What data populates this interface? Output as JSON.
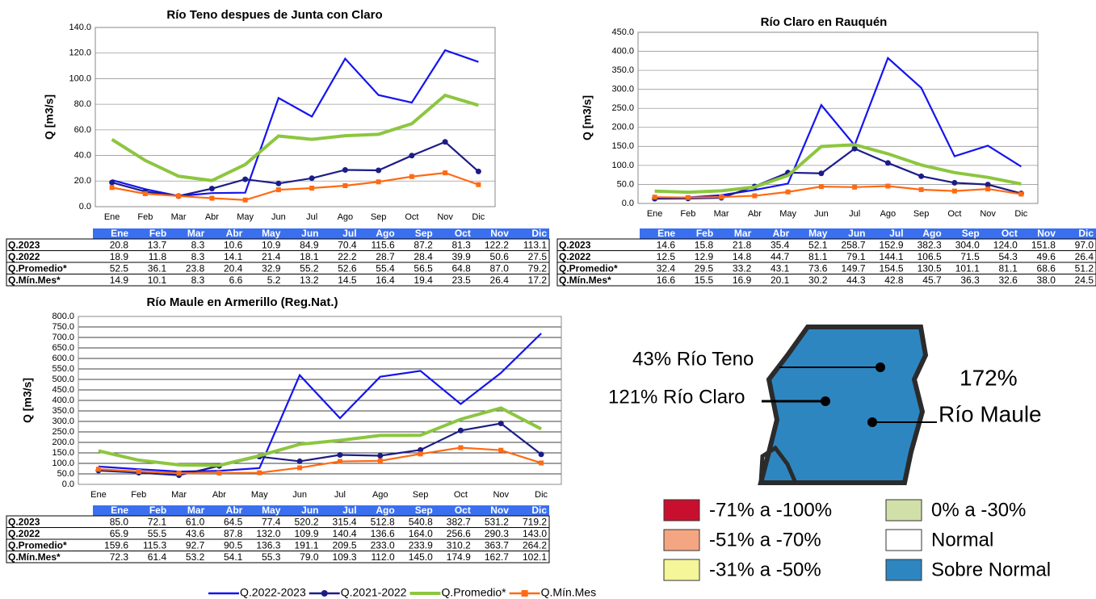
{
  "chart_data": [
    {
      "type": "line",
      "title": "Río Teno despues de Junta con Claro",
      "ylabel": "Q [m3/s]",
      "categories": [
        "Ene",
        "Feb",
        "Mar",
        "Abr",
        "May",
        "Jun",
        "Jul",
        "Ago",
        "Sep",
        "Oct",
        "Nov",
        "Dic"
      ],
      "ylim": [
        0,
        140
      ],
      "yticks": [
        {
          "value": 0,
          "label": "0.0"
        },
        {
          "value": 20,
          "label": "20.0"
        },
        {
          "value": 40,
          "label": "40.0"
        },
        {
          "value": 60,
          "label": "60.0"
        },
        {
          "value": 80,
          "label": "80.0"
        },
        {
          "value": 100,
          "label": "100.0"
        },
        {
          "value": 120,
          "label": "120.0"
        },
        {
          "value": 140,
          "label": "140.0"
        }
      ],
      "grid": true,
      "series": [
        {
          "name": "Q.2023",
          "color": "#1414f0",
          "values": [
            20.8,
            13.7,
            8.3,
            10.6,
            10.9,
            84.9,
            70.4,
            115.6,
            87.2,
            81.3,
            122.2,
            113.1
          ],
          "value_labels": [
            "20.8",
            "13.7",
            "8.3",
            "10.6",
            "10.9",
            "84.9",
            "70.4",
            "115.6",
            "87.2",
            "81.3",
            "122.2",
            "113.1"
          ]
        },
        {
          "name": "Q.2022",
          "color": "#1c1c88",
          "values": [
            18.9,
            11.8,
            8.3,
            14.1,
            21.4,
            18.1,
            22.2,
            28.7,
            28.4,
            39.9,
            50.6,
            27.5
          ],
          "value_labels": [
            "18.9",
            "11.8",
            "8.3",
            "14.1",
            "21.4",
            "18.1",
            "22.2",
            "28.7",
            "28.4",
            "39.9",
            "50.6",
            "27.5"
          ]
        },
        {
          "name": "Q.Promedio*",
          "color": "#8cc63f",
          "values": [
            52.5,
            36.1,
            23.8,
            20.4,
            32.9,
            55.2,
            52.6,
            55.4,
            56.5,
            64.8,
            87.0,
            79.2
          ],
          "value_labels": [
            "52.5",
            "36.1",
            "23.8",
            "20.4",
            "32.9",
            "55.2",
            "52.6",
            "55.4",
            "56.5",
            "64.8",
            "87.0",
            "79.2"
          ]
        },
        {
          "name": "Q.Mín.Mes*",
          "color": "#ff6a13",
          "values": [
            14.9,
            10.1,
            8.3,
            6.6,
            5.2,
            13.2,
            14.5,
            16.4,
            19.4,
            23.5,
            26.4,
            17.2
          ],
          "value_labels": [
            "14.9",
            "10.1",
            "8.3",
            "6.6",
            "5.2",
            "13.2",
            "14.5",
            "16.4",
            "19.4",
            "23.5",
            "26.4",
            "17.2"
          ]
        }
      ]
    },
    {
      "type": "line",
      "title": "Río Claro en Rauquén",
      "ylabel": "Q [m3/s]",
      "categories": [
        "Ene",
        "Feb",
        "Mar",
        "Abr",
        "May",
        "Jun",
        "Jul",
        "Ago",
        "Sep",
        "Oct",
        "Nov",
        "Dic"
      ],
      "ylim": [
        0,
        450
      ],
      "yticks": [
        {
          "value": 0,
          "label": "0.0"
        },
        {
          "value": 50,
          "label": "50.0"
        },
        {
          "value": 100,
          "label": "100.0"
        },
        {
          "value": 150,
          "label": "150.0"
        },
        {
          "value": 200,
          "label": "200.0"
        },
        {
          "value": 250,
          "label": "250.0"
        },
        {
          "value": 300,
          "label": "300.0"
        },
        {
          "value": 350,
          "label": "350.0"
        },
        {
          "value": 400,
          "label": "400.0"
        },
        {
          "value": 450,
          "label": "450.0"
        }
      ],
      "grid": true,
      "series": [
        {
          "name": "Q.2023",
          "color": "#1414f0",
          "values": [
            14.6,
            15.8,
            21.8,
            35.4,
            52.1,
            258.7,
            152.9,
            382.3,
            304.0,
            124.0,
            151.8,
            97.0
          ],
          "value_labels": [
            "14.6",
            "15.8",
            "21.8",
            "35.4",
            "52.1",
            "258.7",
            "152.9",
            "382.3",
            "304.0",
            "124.0",
            "151.8",
            "97.0"
          ]
        },
        {
          "name": "Q.2022",
          "color": "#1c1c88",
          "values": [
            12.5,
            12.9,
            14.8,
            44.7,
            81.1,
            79.1,
            144.1,
            106.5,
            71.5,
            54.3,
            49.6,
            26.4
          ],
          "value_labels": [
            "12.5",
            "12.9",
            "14.8",
            "44.7",
            "81.1",
            "79.1",
            "144.1",
            "106.5",
            "71.5",
            "54.3",
            "49.6",
            "26.4"
          ]
        },
        {
          "name": "Q.Promedio*",
          "color": "#8cc63f",
          "values": [
            32.4,
            29.5,
            33.2,
            43.1,
            73.6,
            149.7,
            154.5,
            130.5,
            101.1,
            81.1,
            68.6,
            51.2
          ],
          "value_labels": [
            "32.4",
            "29.5",
            "33.2",
            "43.1",
            "73.6",
            "149.7",
            "154.5",
            "130.5",
            "101.1",
            "81.1",
            "68.6",
            "51.2"
          ]
        },
        {
          "name": "Q.Mín.Mes*",
          "color": "#ff6a13",
          "values": [
            16.6,
            15.5,
            16.9,
            20.1,
            30.2,
            44.3,
            42.8,
            45.7,
            36.3,
            32.6,
            38.0,
            24.5
          ],
          "value_labels": [
            "16.6",
            "15.5",
            "16.9",
            "20.1",
            "30.2",
            "44.3",
            "42.8",
            "45.7",
            "36.3",
            "32.6",
            "38.0",
            "24.5"
          ]
        }
      ]
    },
    {
      "type": "line",
      "title": "Río Maule en Armerillo (Reg.Nat.)",
      "ylabel": "Q [m3/s]",
      "categories": [
        "Ene",
        "Feb",
        "Mar",
        "Abr",
        "May",
        "Jun",
        "Jul",
        "Ago",
        "Sep",
        "Oct",
        "Nov",
        "Dic"
      ],
      "ylim": [
        0,
        800
      ],
      "yticks": [
        {
          "value": 0,
          "label": "0.0"
        },
        {
          "value": 50,
          "label": "50.0"
        },
        {
          "value": 100,
          "label": "100.0"
        },
        {
          "value": 150,
          "label": "150.0"
        },
        {
          "value": 200,
          "label": "200.0"
        },
        {
          "value": 250,
          "label": "250.0"
        },
        {
          "value": 300,
          "label": "300.0"
        },
        {
          "value": 350,
          "label": "350.0"
        },
        {
          "value": 400,
          "label": "400.0"
        },
        {
          "value": 450,
          "label": "450.0"
        },
        {
          "value": 500,
          "label": "500.0"
        },
        {
          "value": 550,
          "label": "550.0"
        },
        {
          "value": 600,
          "label": "600.0"
        },
        {
          "value": 650,
          "label": "650.0"
        },
        {
          "value": 700,
          "label": "700.0"
        },
        {
          "value": 750,
          "label": "750.0"
        },
        {
          "value": 800,
          "label": "800.0"
        }
      ],
      "grid": true,
      "series": [
        {
          "name": "Q.2023",
          "color": "#1414f0",
          "values": [
            85.0,
            72.1,
            61.0,
            64.5,
            77.4,
            520.2,
            315.4,
            512.8,
            540.8,
            382.7,
            531.2,
            719.2
          ],
          "value_labels": [
            "85.0",
            "72.1",
            "61.0",
            "64.5",
            "77.4",
            "520.2",
            "315.4",
            "512.8",
            "540.8",
            "382.7",
            "531.2",
            "719.2"
          ]
        },
        {
          "name": "Q.2022",
          "color": "#1c1c88",
          "values": [
            65.9,
            55.5,
            43.6,
            87.8,
            132.0,
            109.9,
            140.4,
            136.6,
            164.0,
            256.6,
            290.3,
            143.0
          ],
          "value_labels": [
            "65.9",
            "55.5",
            "43.6",
            "87.8",
            "132.0",
            "109.9",
            "140.4",
            "136.6",
            "164.0",
            "256.6",
            "290.3",
            "143.0"
          ]
        },
        {
          "name": "Q.Promedio*",
          "color": "#8cc63f",
          "values": [
            159.6,
            115.3,
            92.7,
            90.5,
            136.3,
            191.1,
            209.5,
            233.0,
            233.9,
            310.2,
            363.7,
            264.2
          ],
          "value_labels": [
            "159.6",
            "115.3",
            "92.7",
            "90.5",
            "136.3",
            "191.1",
            "209.5",
            "233.0",
            "233.9",
            "310.2",
            "363.7",
            "264.2"
          ]
        },
        {
          "name": "Q.Mín.Mes*",
          "color": "#ff6a13",
          "values": [
            72.3,
            61.4,
            53.2,
            54.1,
            55.3,
            79.0,
            109.3,
            112.0,
            145.0,
            174.9,
            162.7,
            102.1
          ],
          "value_labels": [
            "72.3",
            "61.4",
            "53.2",
            "54.1",
            "55.3",
            "79.0",
            "109.3",
            "112.0",
            "145.0",
            "174.9",
            "162.7",
            "102.1"
          ]
        }
      ]
    }
  ],
  "legend": [
    {
      "name": "Q.2022-2023",
      "color": "#1414f0"
    },
    {
      "name": "Q.2021-2022",
      "color": "#1c1c88"
    },
    {
      "name": "Q.Promedio*",
      "color": "#8cc63f"
    },
    {
      "name": "Q.Mín.Mes",
      "color": "#ff6a13"
    }
  ],
  "map": {
    "labels": [
      "43% Río Teno",
      "121% Río Claro",
      "172%",
      "Río Maule"
    ],
    "classes": [
      {
        "label": "-71% a -100%",
        "color": "#c8102e"
      },
      {
        "label": "-51% a -70%",
        "color": "#f4a582"
      },
      {
        "label": "-31% a -50%",
        "color": "#f5f59a"
      },
      {
        "label": "0% a -30%",
        "color": "#d0e0a8"
      },
      {
        "label": "Normal",
        "color": "#ffffff"
      },
      {
        "label": "Sobre Normal",
        "color": "#2e86c1"
      }
    ]
  }
}
